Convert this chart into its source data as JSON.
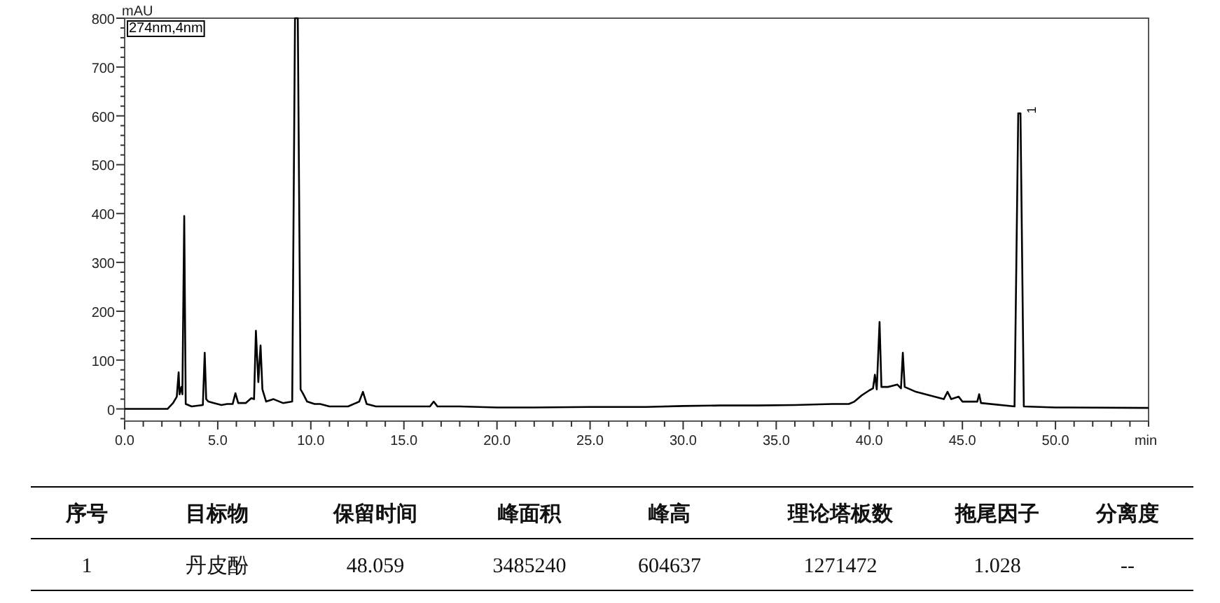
{
  "chart_data": [
    {
      "type": "line",
      "xlabel": "min",
      "ylabel": "mAU",
      "xlim": [
        0,
        55
      ],
      "ylim": [
        -25,
        800
      ],
      "grid": false,
      "marker": "none",
      "line_style": "solid",
      "xticks": [
        {
          "value": 0,
          "label": "0.0"
        },
        {
          "value": 1,
          "label": null
        },
        {
          "value": 2,
          "label": null
        },
        {
          "value": 3,
          "label": null
        },
        {
          "value": 4,
          "label": null
        },
        {
          "value": 5,
          "label": "5.0"
        },
        {
          "value": 6,
          "label": null
        },
        {
          "value": 7,
          "label": null
        },
        {
          "value": 8,
          "label": null
        },
        {
          "value": 9,
          "label": null
        },
        {
          "value": 10,
          "label": "10.0"
        },
        {
          "value": 11,
          "label": null
        },
        {
          "value": 12,
          "label": null
        },
        {
          "value": 13,
          "label": null
        },
        {
          "value": 14,
          "label": null
        },
        {
          "value": 15,
          "label": "15.0"
        },
        {
          "value": 16,
          "label": null
        },
        {
          "value": 17,
          "label": null
        },
        {
          "value": 18,
          "label": null
        },
        {
          "value": 19,
          "label": null
        },
        {
          "value": 20,
          "label": "20.0"
        },
        {
          "value": 21,
          "label": null
        },
        {
          "value": 22,
          "label": null
        },
        {
          "value": 23,
          "label": null
        },
        {
          "value": 24,
          "label": null
        },
        {
          "value": 25,
          "label": "25.0"
        },
        {
          "value": 26,
          "label": null
        },
        {
          "value": 27,
          "label": null
        },
        {
          "value": 28,
          "label": null
        },
        {
          "value": 29,
          "label": null
        },
        {
          "value": 30,
          "label": "30.0"
        },
        {
          "value": 31,
          "label": null
        },
        {
          "value": 32,
          "label": null
        },
        {
          "value": 33,
          "label": null
        },
        {
          "value": 34,
          "label": null
        },
        {
          "value": 35,
          "label": "35.0"
        },
        {
          "value": 36,
          "label": null
        },
        {
          "value": 37,
          "label": null
        },
        {
          "value": 38,
          "label": null
        },
        {
          "value": 39,
          "label": null
        },
        {
          "value": 40,
          "label": "40.0"
        },
        {
          "value": 41,
          "label": null
        },
        {
          "value": 42,
          "label": null
        },
        {
          "value": 43,
          "label": null
        },
        {
          "value": 44,
          "label": null
        },
        {
          "value": 45,
          "label": "45.0"
        },
        {
          "value": 46,
          "label": null
        },
        {
          "value": 47,
          "label": null
        },
        {
          "value": 48,
          "label": null
        },
        {
          "value": 49,
          "label": null
        },
        {
          "value": 50,
          "label": "50.0"
        },
        {
          "value": 51,
          "label": null
        },
        {
          "value": 52,
          "label": null
        },
        {
          "value": 53,
          "label": null
        },
        {
          "value": 54,
          "label": null
        },
        {
          "value": 55,
          "label": null
        }
      ],
      "yticks": [
        {
          "value": -20,
          "label": null
        },
        0,
        {
          "value": 20,
          "label": null
        },
        {
          "value": 40,
          "label": null
        },
        {
          "value": 60,
          "label": null
        },
        {
          "value": 80,
          "label": null
        },
        100,
        {
          "value": 120,
          "label": null
        },
        {
          "value": 140,
          "label": null
        },
        {
          "value": 160,
          "label": null
        },
        {
          "value": 180,
          "label": null
        },
        200,
        {
          "value": 220,
          "label": null
        },
        {
          "value": 240,
          "label": null
        },
        {
          "value": 260,
          "label": null
        },
        {
          "value": 280,
          "label": null
        },
        300,
        {
          "value": 320,
          "label": null
        },
        {
          "value": 340,
          "label": null
        },
        {
          "value": 360,
          "label": null
        },
        {
          "value": 380,
          "label": null
        },
        400,
        {
          "value": 420,
          "label": null
        },
        {
          "value": 440,
          "label": null
        },
        {
          "value": 460,
          "label": null
        },
        {
          "value": 480,
          "label": null
        },
        500,
        {
          "value": 520,
          "label": null
        },
        {
          "value": 540,
          "label": null
        },
        {
          "value": 560,
          "label": null
        },
        {
          "value": 580,
          "label": null
        },
        600,
        {
          "value": 620,
          "label": null
        },
        {
          "value": 640,
          "label": null
        },
        {
          "value": 660,
          "label": null
        },
        {
          "value": 680,
          "label": null
        },
        700,
        {
          "value": 720,
          "label": null
        },
        {
          "value": 740,
          "label": null
        },
        {
          "value": 760,
          "label": null
        },
        {
          "value": 780,
          "label": null
        },
        800
      ],
      "annotations": [
        "274nm,4nm",
        {
          "text": "1",
          "x": 48.059,
          "y": 605
        }
      ],
      "series": [
        {
          "color": "#000000",
          "x": [
            0,
            2.3,
            2.6,
            2.8,
            2.9,
            2.95,
            3.05,
            3.1,
            3.2,
            3.28,
            3.6,
            4.2,
            4.3,
            4.38,
            4.5,
            4.8,
            5.2,
            5.5,
            5.8,
            5.95,
            6.1,
            6.5,
            6.8,
            6.95,
            7.05,
            7.18,
            7.3,
            7.4,
            7.6,
            8.0,
            8.5,
            9.0,
            9.15,
            9.3,
            9.45,
            9.6,
            9.8,
            10.2,
            10.5,
            11.0,
            12.0,
            12.6,
            12.8,
            13.0,
            13.5,
            15.0,
            16.4,
            16.6,
            16.8,
            18,
            20,
            22,
            25,
            28,
            30,
            32,
            34,
            36,
            38,
            38.9,
            39.2,
            39.6,
            40.0,
            40.2,
            40.3,
            40.4,
            40.55,
            40.65,
            41.0,
            41.5,
            41.7,
            41.8,
            41.9,
            42.5,
            43.5,
            44.0,
            44.2,
            44.4,
            44.8,
            45.0,
            45.8,
            45.9,
            46.0,
            47.8,
            48.0,
            48.12,
            48.3,
            50,
            55
          ],
          "values": [
            0,
            0,
            12,
            25,
            75,
            30,
            45,
            30,
            395,
            10,
            5,
            8,
            115,
            20,
            15,
            12,
            8,
            10,
            10,
            32,
            12,
            12,
            22,
            20,
            160,
            55,
            130,
            40,
            15,
            20,
            12,
            15,
            800,
            800,
            40,
            30,
            15,
            10,
            10,
            5,
            5,
            15,
            35,
            10,
            5,
            5,
            5,
            15,
            5,
            5,
            3,
            3,
            4,
            4,
            6,
            7,
            7,
            8,
            10,
            10,
            15,
            28,
            38,
            42,
            70,
            40,
            178,
            45,
            45,
            50,
            42,
            115,
            45,
            35,
            25,
            20,
            35,
            20,
            25,
            15,
            15,
            30,
            12,
            5,
            605,
            605,
            5,
            3,
            2
          ]
        }
      ]
    },
    {
      "type": "other",
      "annotations": [
        "序号",
        "目标物",
        "保留时间",
        "峰面积",
        "峰高",
        "理论塔板数",
        "拖尾因子",
        "分离度",
        "1",
        "丹皮酚",
        "48.059",
        "3485240",
        "604637",
        "1271472",
        "1.028",
        "--"
      ]
    }
  ]
}
